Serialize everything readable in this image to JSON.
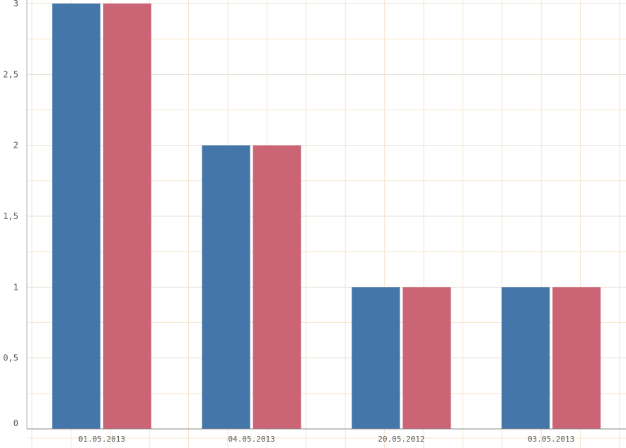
{
  "chart_data": {
    "type": "bar",
    "title": "",
    "xlabel": "",
    "ylabel": "",
    "categories": [
      "01.05.2013",
      "04.05.2013",
      "20.05.2012",
      "03.05.2013"
    ],
    "series": [
      {
        "values": [
          3,
          2,
          1,
          1
        ],
        "color": "#4476a9"
      },
      {
        "values": [
          3,
          2,
          1,
          1
        ],
        "color": "#cb6474"
      }
    ],
    "ylim": [
      0,
      3
    ],
    "yticks": [
      "0",
      "0,5",
      "1",
      "1,5",
      "2",
      "2,5",
      "3"
    ],
    "grid": true,
    "legend": "none"
  }
}
